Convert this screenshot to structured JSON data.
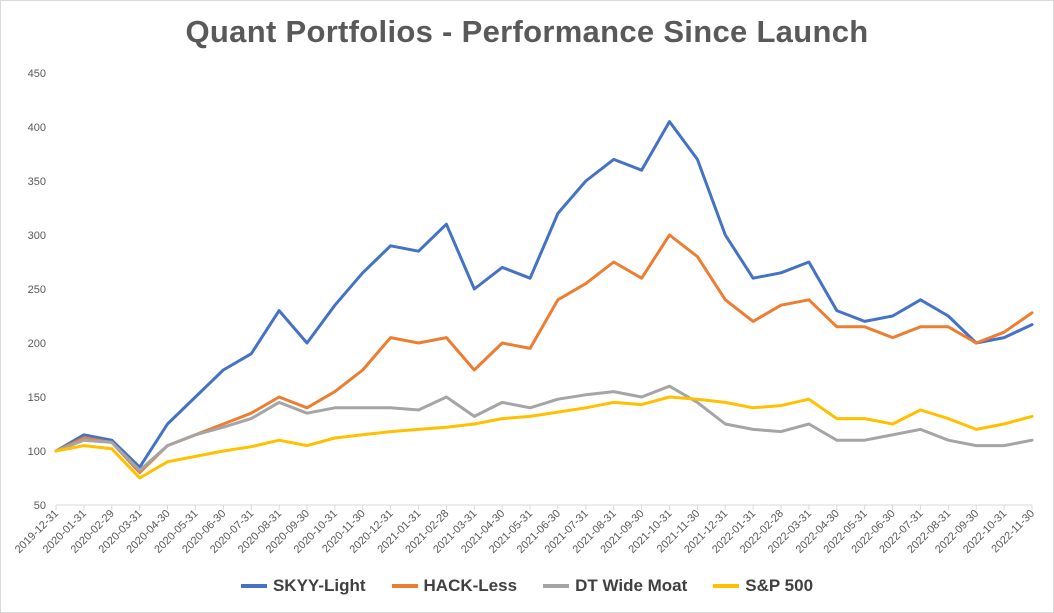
{
  "chart_data": {
    "type": "line",
    "title": "Quant Portfolios - Performance Since Launch",
    "xlabel": "",
    "ylabel": "",
    "ylim": [
      50,
      450
    ],
    "yticks": [
      50,
      100,
      150,
      200,
      250,
      300,
      350,
      400,
      450
    ],
    "grid": false,
    "legend_position": "bottom",
    "categories": [
      "2019-12-31",
      "2020-01-31",
      "2020-02-29",
      "2020-03-31",
      "2020-04-30",
      "2020-05-31",
      "2020-06-30",
      "2020-07-31",
      "2020-08-31",
      "2020-09-30",
      "2020-10-31",
      "2020-11-30",
      "2020-12-31",
      "2021-01-31",
      "2021-02-28",
      "2021-03-31",
      "2021-04-30",
      "2021-05-31",
      "2021-06-30",
      "2021-07-31",
      "2021-08-31",
      "2021-09-30",
      "2021-10-31",
      "2021-11-30",
      "2021-12-31",
      "2022-01-31",
      "2022-02-28",
      "2022-03-31",
      "2022-04-30",
      "2022-05-31",
      "2022-06-30",
      "2022-07-31",
      "2022-08-31",
      "2022-09-30",
      "2022-10-31",
      "2022-11-30"
    ],
    "series": [
      {
        "name": "SKYY-Light",
        "color": "#4472c4",
        "values": [
          100,
          115,
          110,
          85,
          125,
          150,
          175,
          190,
          230,
          200,
          235,
          265,
          290,
          285,
          310,
          250,
          270,
          260,
          320,
          350,
          370,
          360,
          405,
          370,
          300,
          260,
          265,
          275,
          230,
          220,
          225,
          240,
          225,
          200,
          205,
          217
        ]
      },
      {
        "name": "HACK-Less",
        "color": "#ed7d31",
        "values": [
          100,
          112,
          108,
          80,
          105,
          115,
          125,
          135,
          150,
          140,
          155,
          175,
          205,
          200,
          205,
          175,
          200,
          195,
          240,
          255,
          275,
          260,
          300,
          280,
          240,
          220,
          235,
          240,
          215,
          215,
          205,
          215,
          215,
          200,
          210,
          228
        ]
      },
      {
        "name": "DT Wide Moat",
        "color": "#a5a5a5",
        "values": [
          100,
          110,
          108,
          82,
          105,
          115,
          122,
          130,
          145,
          135,
          140,
          140,
          140,
          138,
          150,
          132,
          145,
          140,
          148,
          152,
          155,
          150,
          160,
          145,
          125,
          120,
          118,
          125,
          110,
          110,
          115,
          120,
          110,
          105,
          105,
          110
        ]
      },
      {
        "name": "S&P 500",
        "color": "#ffc000",
        "values": [
          100,
          105,
          102,
          75,
          90,
          95,
          100,
          104,
          110,
          105,
          112,
          115,
          118,
          120,
          122,
          125,
          130,
          132,
          136,
          140,
          145,
          143,
          150,
          148,
          145,
          140,
          142,
          148,
          130,
          130,
          125,
          138,
          130,
          120,
          125,
          132
        ]
      }
    ]
  }
}
